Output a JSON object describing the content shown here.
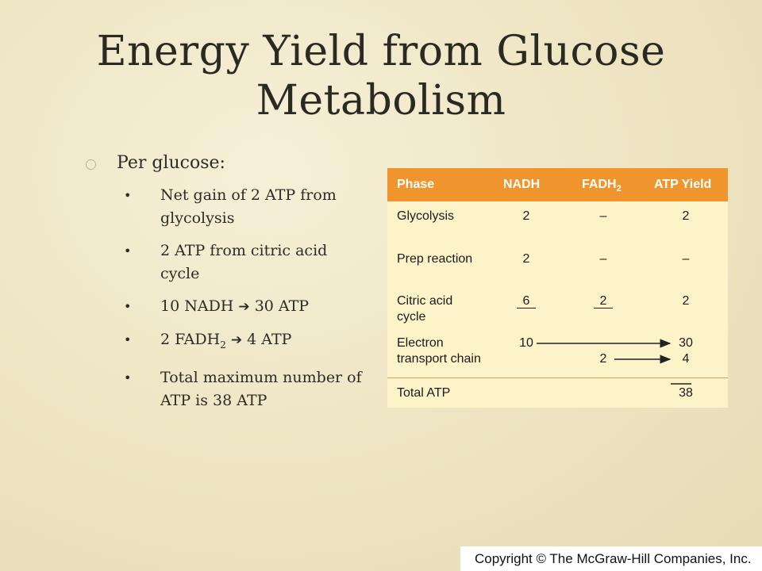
{
  "title": {
    "line1": "Energy Yield from Glucose",
    "line2": "Metabolism"
  },
  "bullets": {
    "main": "Per glucose:",
    "items": [
      {
        "text": "Net gain of 2 ATP from glycolysis"
      },
      {
        "text": "2 ATP from citric acid cycle"
      },
      {
        "left": "10 NADH",
        "right": "30 ATP"
      },
      {
        "left_prefix": "2 FADH",
        "left_sub": "2",
        "right": "4 ATP"
      },
      {
        "text": "Total maximum number of ATP is 38 ATP"
      }
    ],
    "bullet_char": "•",
    "arrow_char": "➔"
  },
  "table": {
    "header": {
      "phase": "Phase",
      "nadh": "NADH",
      "fadh_prefix": "FADH",
      "fadh_sub": "2",
      "atp": "ATP Yield"
    },
    "rows": [
      {
        "phase": "Glycolysis",
        "nadh": "2",
        "fadh": "–",
        "atp": "2"
      },
      {
        "phase": "Prep reaction",
        "nadh": "2",
        "fadh": "–",
        "atp": "–"
      },
      {
        "phase_line1": "Citric acid",
        "phase_line2": "cycle",
        "nadh": "6",
        "fadh": "2",
        "atp": "2"
      },
      {
        "phase_line1": "Electron",
        "phase_line2": "transport chain",
        "nadh": "10",
        "fadh": "2",
        "atp_line1": "30",
        "atp_line2": "4"
      }
    ],
    "total": {
      "label": "Total ATP",
      "value": "38"
    },
    "colors": {
      "header_bg": "#f0952e",
      "body_bg": "#fdf3c8"
    }
  },
  "copyright": "Copyright © The McGraw-Hill Companies, Inc."
}
